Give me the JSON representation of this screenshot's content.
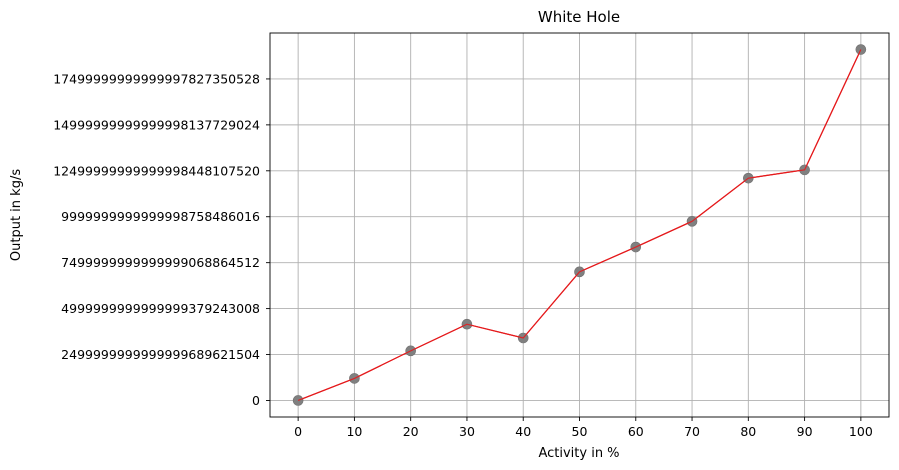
{
  "chart_data": {
    "type": "line",
    "title": "White Hole",
    "xlabel": "Activity in %",
    "ylabel": "Output in kg/s",
    "x": [
      0,
      10,
      20,
      30,
      40,
      50,
      60,
      70,
      80,
      90,
      100
    ],
    "xticks": [
      "0",
      "10",
      "20",
      "30",
      "40",
      "50",
      "60",
      "70",
      "80",
      "90",
      "100"
    ],
    "yticks": [
      {
        "value": 0,
        "label": "0"
      },
      {
        "value": 2.5e+24,
        "label": "2499999999999999689621504"
      },
      {
        "value": 5e+24,
        "label": "4999999999999999379243008"
      },
      {
        "value": 7.5e+24,
        "label": "7499999999999999068864512"
      },
      {
        "value": 1e+25,
        "label": "9999999999999998758486016"
      },
      {
        "value": 1.25e+25,
        "label": "12499999999999998448107520"
      },
      {
        "value": 1.5e+25,
        "label": "14999999999999998137729024"
      },
      {
        "value": 1.75e+25,
        "label": "17499999999999997827350528"
      }
    ],
    "xlim": [
      -5,
      105
    ],
    "ylim": [
      -9e+23,
      2e+25
    ],
    "series": [
      {
        "values": [
          0,
          1.2e+24,
          2.7e+24,
          4.15e+24,
          3.4e+24,
          7e+24,
          8.35e+24,
          9.75e+24,
          1.21e+25,
          1.255e+25,
          1.91e+25
        ],
        "line_color": "#e41a1c",
        "marker_color": "#808080"
      }
    ],
    "grid": true
  }
}
